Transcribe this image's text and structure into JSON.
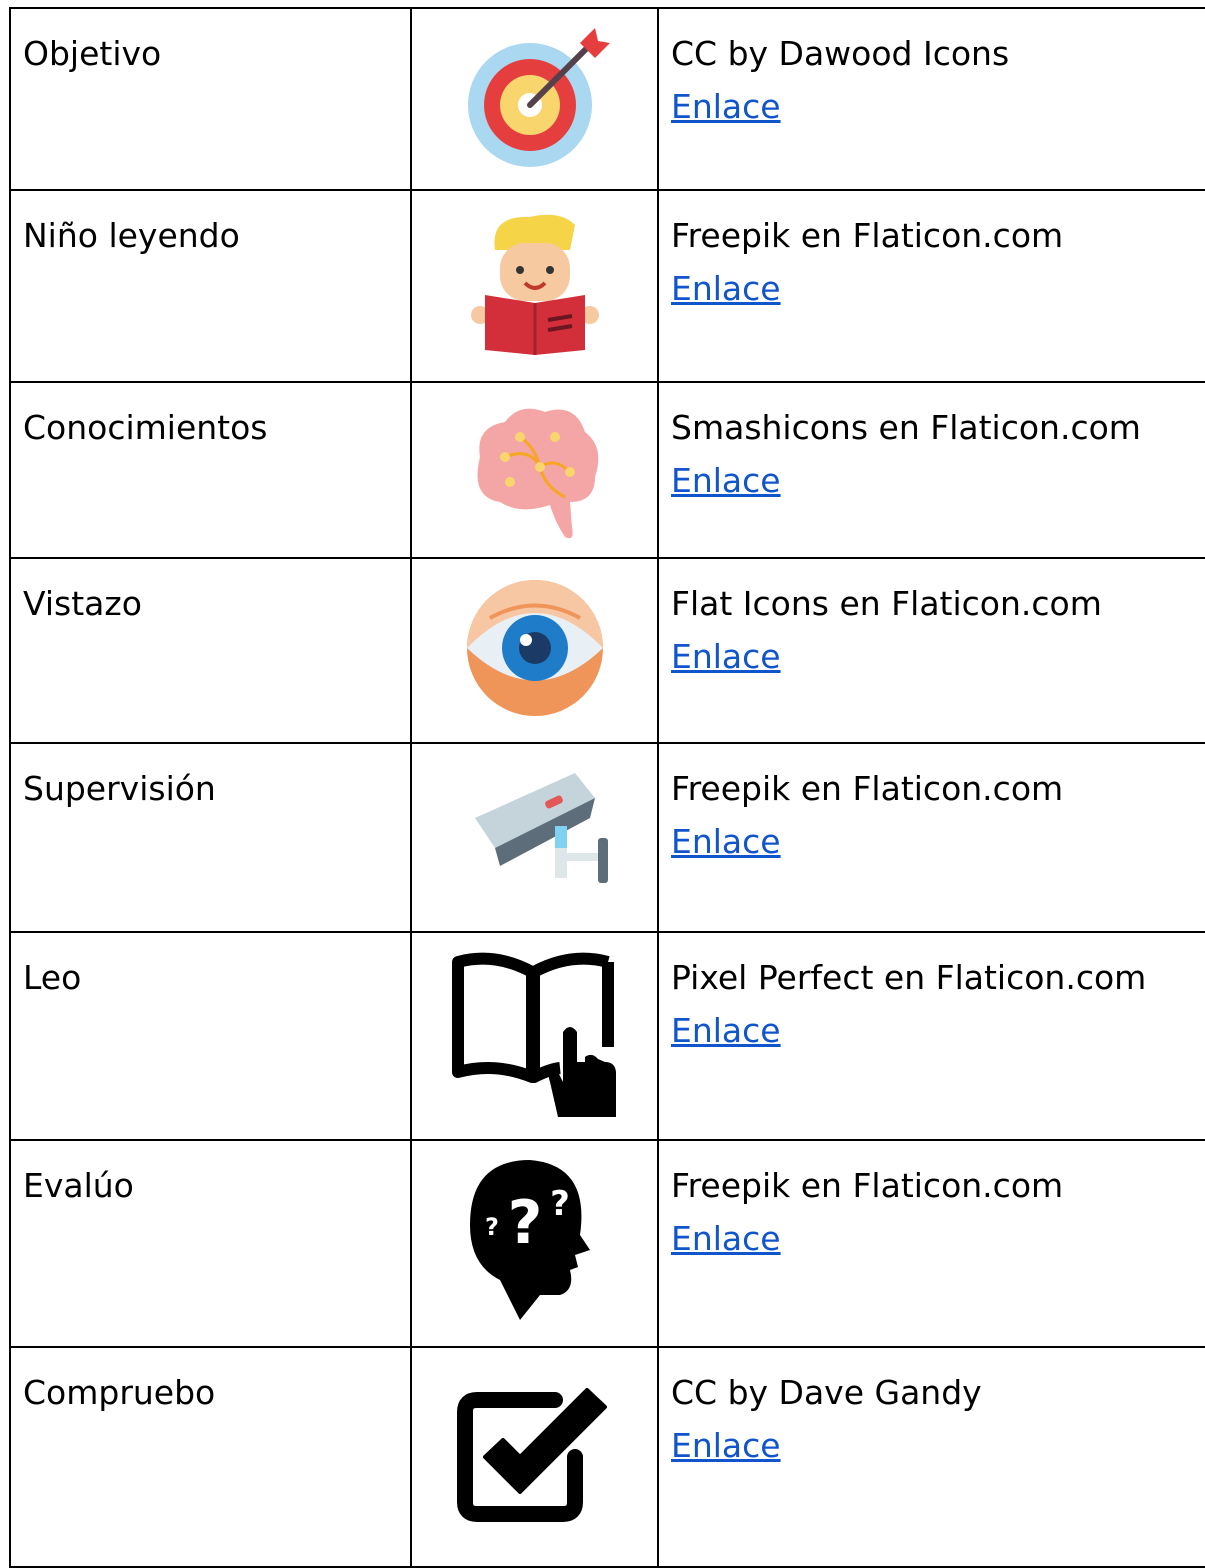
{
  "table": {
    "rows": [
      {
        "name": "Objetivo",
        "credit": "CC by Dawood Icons",
        "link": "Enlace"
      },
      {
        "name": "Niño leyendo",
        "credit": "Freepik en Flaticon.com",
        "link": "Enlace"
      },
      {
        "name": "Conocimientos",
        "credit": "Smashicons en Flaticon.com",
        "link": "Enlace"
      },
      {
        "name": "Vistazo",
        "credit": "Flat Icons en Flaticon.com",
        "link": "Enlace"
      },
      {
        "name": "Supervisión",
        "credit": "Freepik en Flaticon.com",
        "link": "Enlace"
      },
      {
        "name": "Leo",
        "credit": "Pixel Perfect en Flaticon.com",
        "link": "Enlace"
      },
      {
        "name": "Evalúo",
        "credit": "Freepik en Flaticon.com",
        "link": "Enlace"
      },
      {
        "name": "Compruebo",
        "credit": "CC by Dave Gandy",
        "link": "Enlace"
      }
    ]
  }
}
